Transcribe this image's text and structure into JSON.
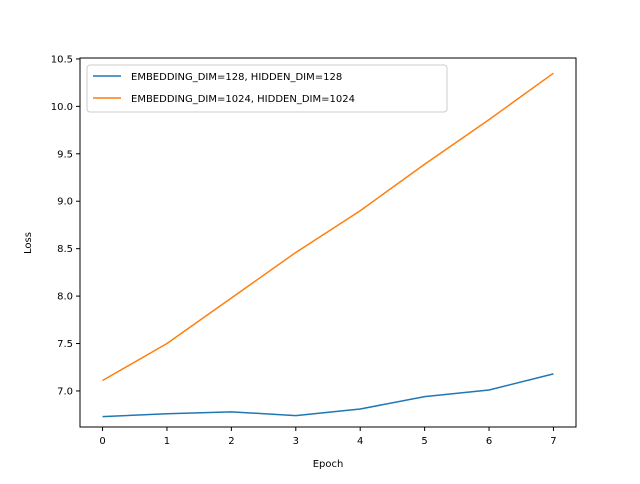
{
  "chart_data": {
    "type": "line",
    "title": "",
    "xlabel": "Epoch",
    "ylabel": "Loss",
    "x": [
      0,
      1,
      2,
      3,
      4,
      5,
      6,
      7
    ],
    "xlim": [
      -0.35,
      7.35
    ],
    "ylim": [
      6.62,
      10.51
    ],
    "xticks": [
      0,
      1,
      2,
      3,
      4,
      5,
      6,
      7
    ],
    "yticks": [
      7.0,
      7.5,
      8.0,
      8.5,
      9.0,
      9.5,
      10.0,
      10.5
    ],
    "xtick_labels": [
      "0",
      "1",
      "2",
      "3",
      "4",
      "5",
      "6",
      "7"
    ],
    "ytick_labels": [
      "7.0",
      "7.5",
      "8.0",
      "8.5",
      "9.0",
      "9.5",
      "10.0",
      "10.5"
    ],
    "grid": false,
    "legend_position": "top-left",
    "series": [
      {
        "name": "EMBEDDING_DIM=128, HIDDEN_DIM=128",
        "color": "#1f77b4",
        "values": [
          6.73,
          6.76,
          6.78,
          6.74,
          6.81,
          6.94,
          7.01,
          7.18
        ]
      },
      {
        "name": "EMBEDDING_DIM=1024, HIDDEN_DIM=1024",
        "color": "#ff7f0e",
        "values": [
          7.11,
          7.5,
          7.98,
          8.46,
          8.9,
          9.39,
          9.86,
          10.35
        ]
      }
    ]
  }
}
